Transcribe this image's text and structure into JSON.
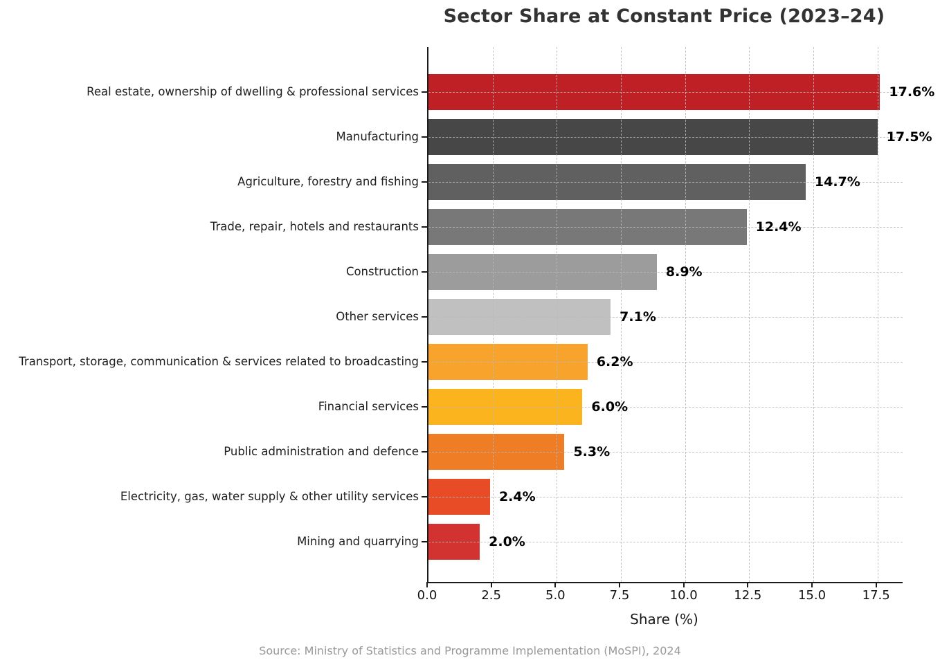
{
  "title": "Sector Share at Constant Price (2023–24)",
  "xaxis_label": "Share (%)",
  "source_note": "Source: Ministry of Statistics and Programme Implementation (MoSPI), 2024",
  "chart_data": {
    "type": "bar",
    "orientation": "horizontal",
    "title": "Sector Share at Constant Price (2023–24)",
    "xlabel": "Share (%)",
    "ylabel": "",
    "categories": [
      "Real estate, ownership of dwelling & professional services",
      "Manufacturing",
      "Agriculture, forestry and fishing",
      "Trade, repair, hotels and restaurants",
      "Construction",
      "Other services",
      "Transport, storage, communication & services related to broadcasting",
      "Financial services",
      "Public administration and defence",
      "Electricity, gas, water supply & other utility services",
      "Mining and quarrying"
    ],
    "values": [
      17.6,
      17.5,
      14.7,
      12.4,
      8.9,
      7.1,
      6.2,
      6.0,
      5.3,
      2.4,
      2.0
    ],
    "value_labels": [
      "17.6%",
      "17.5%",
      "14.7%",
      "12.4%",
      "8.9%",
      "7.1%",
      "6.2%",
      "6.0%",
      "5.3%",
      "2.4%",
      "2.0%"
    ],
    "bar_colors": [
      "#be2026",
      "#474747",
      "#606060",
      "#787878",
      "#9c9c9c",
      "#c0c0c0",
      "#f8a42c",
      "#fbb31e",
      "#ef7d26",
      "#e84c26",
      "#d23230"
    ],
    "xticks": [
      0.0,
      2.5,
      5.0,
      7.5,
      10.0,
      12.5,
      15.0,
      17.5
    ],
    "xtick_labels": [
      "0.0",
      "2.5",
      "5.0",
      "7.5",
      "10.0",
      "12.5",
      "15.0",
      "17.5"
    ],
    "xlim": [
      0,
      18.48
    ],
    "grid": "dashed, both axes, drawn over bars",
    "legend": "none",
    "source": "Source: Ministry of Statistics and Programme Implementation (MoSPI), 2024"
  }
}
